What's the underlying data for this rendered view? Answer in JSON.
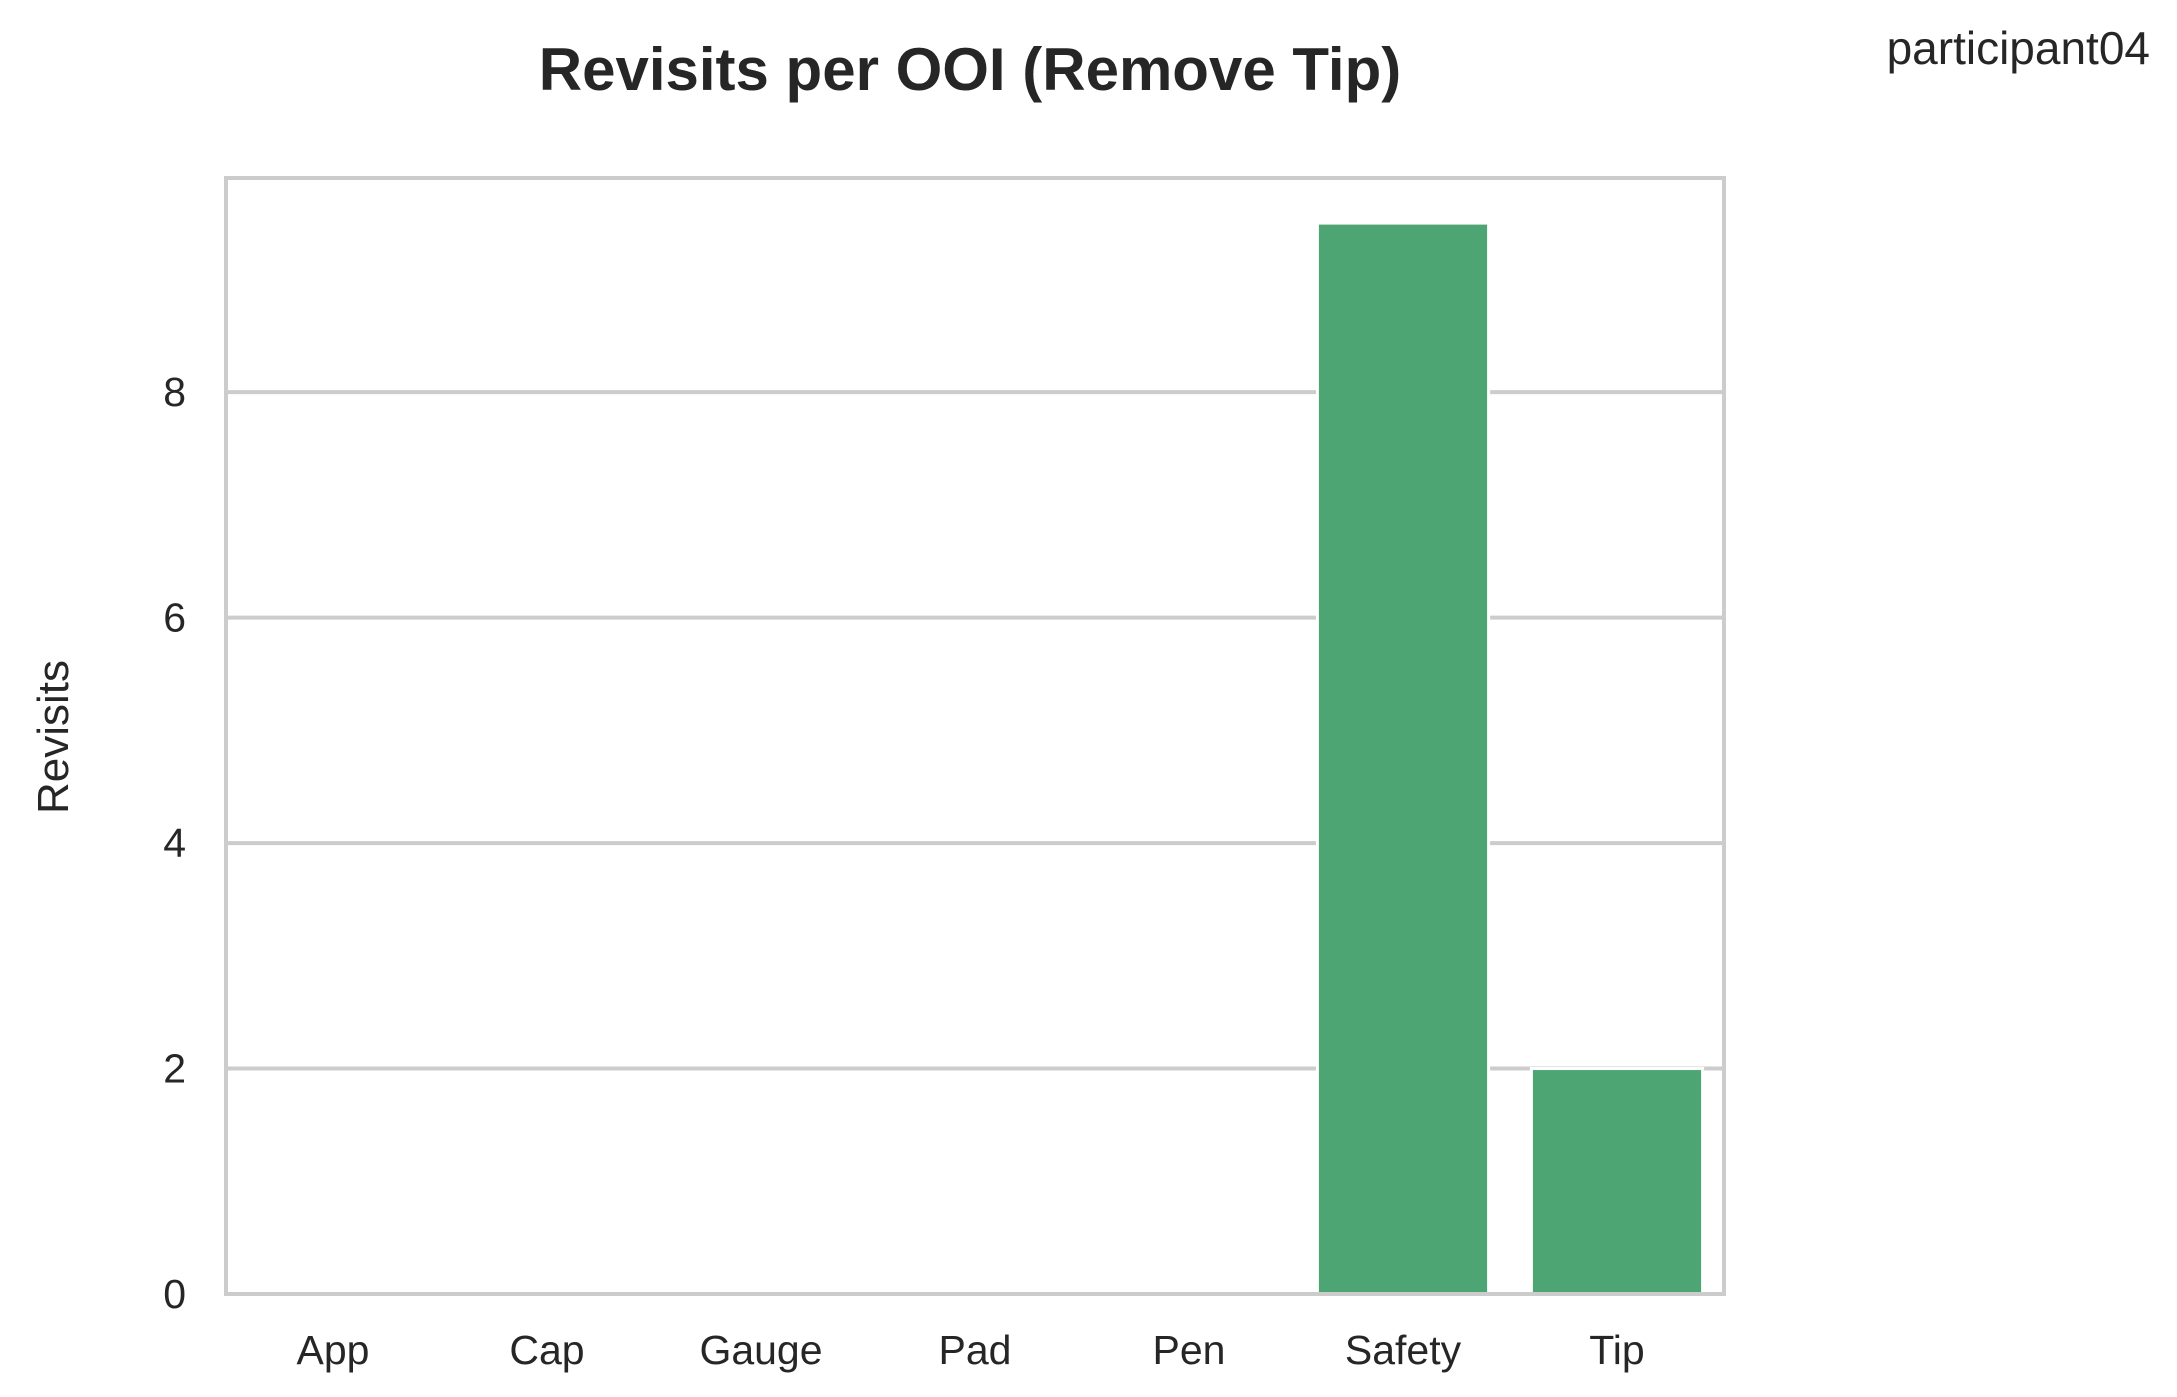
{
  "participant": "participant04",
  "chart_data": {
    "type": "bar",
    "title": "Revisits per OOI (Remove Tip)",
    "xlabel": "",
    "ylabel": "Revisits",
    "categories": [
      "App",
      "Cap",
      "Gauge",
      "Pad",
      "Pen",
      "Safety",
      "Tip"
    ],
    "values": [
      0,
      0,
      0,
      0,
      0,
      9.5,
      2
    ],
    "ylim": [
      0,
      9.9
    ],
    "yticks": [
      0,
      2,
      4,
      6,
      8
    ],
    "grid": "horizontal",
    "bar_color": "#4ea574"
  }
}
